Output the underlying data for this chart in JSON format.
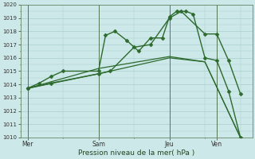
{
  "background_color": "#cce8e8",
  "grid_color": "#aacece",
  "line_color": "#2d6a2d",
  "marker_color": "#2d6a2d",
  "xlabel": "Pression niveau de la mer( hPa )",
  "ylim": [
    1010,
    1020
  ],
  "yticks": [
    1010,
    1011,
    1012,
    1013,
    1014,
    1015,
    1016,
    1017,
    1018,
    1019,
    1020
  ],
  "xtick_labels": [
    "Mer",
    "Sam",
    "Jeu",
    "Ven"
  ],
  "xtick_positions": [
    0,
    3,
    6,
    8
  ],
  "vlines": [
    0,
    3,
    6,
    8
  ],
  "series": [
    {
      "x": [
        0,
        0.5,
        1.0,
        1.5,
        3.0,
        3.3,
        3.7,
        4.2,
        4.7,
        5.2,
        5.7,
        6.0,
        6.3,
        6.7,
        7.0,
        7.5,
        8.0,
        8.5,
        9.0
      ],
      "y": [
        1013.7,
        1014.1,
        1014.6,
        1015.0,
        1015.0,
        1017.7,
        1018.0,
        1017.3,
        1016.5,
        1017.5,
        1017.5,
        1019.1,
        1019.5,
        1019.5,
        1019.3,
        1016.0,
        1015.8,
        1013.5,
        1010.0
      ],
      "marker": "D",
      "lw": 1.0,
      "ms": 2.5
    },
    {
      "x": [
        0,
        1.0,
        3.0,
        3.5,
        4.5,
        5.2,
        6.0,
        6.5,
        7.5,
        8.0,
        8.5,
        9.0
      ],
      "y": [
        1013.7,
        1014.1,
        1014.8,
        1015.0,
        1016.8,
        1017.0,
        1019.0,
        1019.5,
        1017.8,
        1017.8,
        1015.8,
        1013.3
      ],
      "marker": "D",
      "lw": 1.0,
      "ms": 2.5
    },
    {
      "x": [
        0,
        3.0,
        6.0,
        7.5,
        9.0
      ],
      "y": [
        1013.7,
        1015.2,
        1016.1,
        1015.7,
        1010.0
      ],
      "marker": null,
      "lw": 0.9,
      "ms": 0
    },
    {
      "x": [
        0,
        3.0,
        6.0,
        7.5,
        9.0
      ],
      "y": [
        1013.7,
        1014.8,
        1016.0,
        1015.7,
        1010.0
      ],
      "marker": null,
      "lw": 0.9,
      "ms": 0
    }
  ]
}
